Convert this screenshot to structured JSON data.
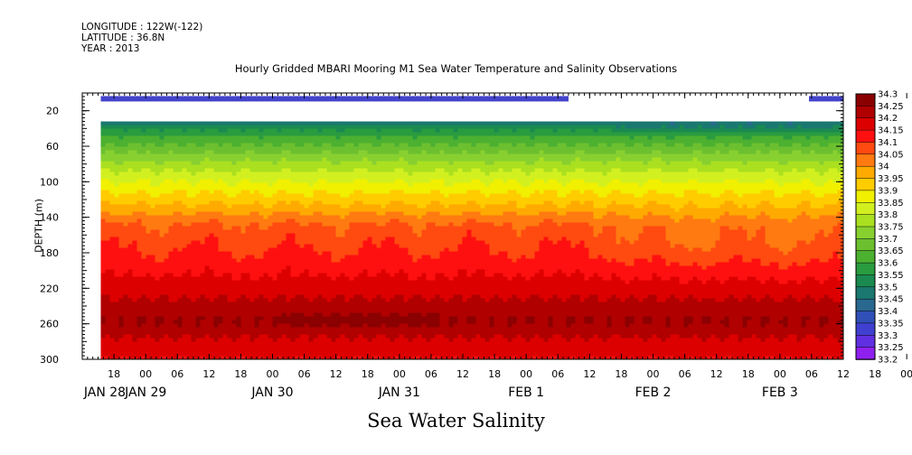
{
  "header": {
    "longitude": "LONGITUDE : 122W(-122)",
    "latitude": "LATITUDE : 36.8N",
    "year": "YEAR : 2013"
  },
  "chart_data": {
    "type": "heatmap",
    "title": "Hourly Gridded MBARI Mooring M1 Sea Water Temperature and Salinity Observations",
    "xlabel": "Sea Water Salinity",
    "ylabel": "DEPTH (m)",
    "x_hours_range": [
      "2013-01-28 12:00",
      "2013-02-03 12:00"
    ],
    "y_range": [
      0,
      300
    ],
    "y_reversed": true,
    "y_ticks": [
      20,
      60,
      100,
      140,
      180,
      220,
      260,
      300
    ],
    "x_tick_labels": [
      "18",
      "00",
      "06",
      "12",
      "18",
      "00",
      "06",
      "12",
      "18",
      "00",
      "06",
      "12",
      "18",
      "00",
      "06",
      "12",
      "18",
      "00",
      "06",
      "12",
      "18",
      "00",
      "06",
      "12",
      "18",
      "00",
      "06"
    ],
    "x_tick_hours": [
      18,
      24,
      30,
      36,
      42,
      48,
      54,
      60,
      66,
      72,
      78,
      84,
      90,
      96,
      102,
      108,
      114,
      120,
      126,
      132,
      138,
      144,
      150,
      156,
      162,
      168,
      174
    ],
    "x_date_labels": [
      "JAN 28",
      "JAN 29",
      "JAN 30",
      "JAN 31",
      "FEB  1",
      "FEB  2",
      "FEB  3"
    ],
    "x_date_hours": [
      0,
      24,
      48,
      72,
      96,
      120,
      144
    ],
    "colorbar": {
      "levels": [
        "34.3",
        "34.25",
        "34.2",
        "34.15",
        "34.1",
        "34.05",
        "34",
        "33.95",
        "33.9",
        "33.85",
        "33.8",
        "33.75",
        "33.7",
        "33.65",
        "33.6",
        "33.55",
        "33.5",
        "33.45",
        "33.4",
        "33.35",
        "33.3",
        "33.25",
        "33.2"
      ],
      "colors": [
        "#8b0000",
        "#b00000",
        "#dd0000",
        "#ff1010",
        "#ff4a10",
        "#ff7a10",
        "#ffaa00",
        "#ffcc00",
        "#f0f000",
        "#d2f020",
        "#aae020",
        "#88d030",
        "#6cc030",
        "#4cb030",
        "#2a9c40",
        "#1a8a50",
        "#1a7870",
        "#2a6890",
        "#3050b8",
        "#4040d0",
        "#6030e0",
        "#9020f0",
        "#c010f8"
      ]
    }
  }
}
